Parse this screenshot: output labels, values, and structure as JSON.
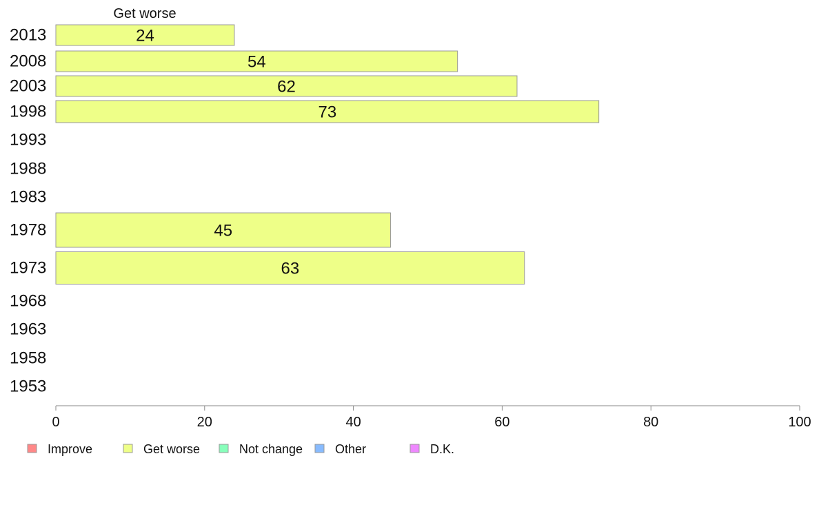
{
  "chart_data": {
    "type": "bar",
    "orientation": "horizontal",
    "title": "Get worse",
    "categories": [
      "2013",
      "2008",
      "2003",
      "1998",
      "1993",
      "1988",
      "1983",
      "1978",
      "1973",
      "1968",
      "1963",
      "1958",
      "1953"
    ],
    "series": [
      {
        "name": "Get worse",
        "color": "#eeff88",
        "values": [
          24,
          54,
          62,
          73,
          null,
          null,
          null,
          45,
          63,
          null,
          null,
          null,
          null
        ]
      }
    ],
    "xlim": [
      0,
      100
    ],
    "xticks": [
      "0",
      "20",
      "40",
      "60",
      "80",
      "100"
    ],
    "legend": {
      "placement": "bottom",
      "entries": [
        {
          "name": "Improve",
          "color": "#ff8888"
        },
        {
          "name": "Get worse",
          "color": "#eeff88"
        },
        {
          "name": "Not change",
          "color": "#88ffbb"
        },
        {
          "name": "Other",
          "color": "#88bbff"
        },
        {
          "name": "D.K.",
          "color": "#ee88ff"
        }
      ]
    },
    "grid": false
  }
}
